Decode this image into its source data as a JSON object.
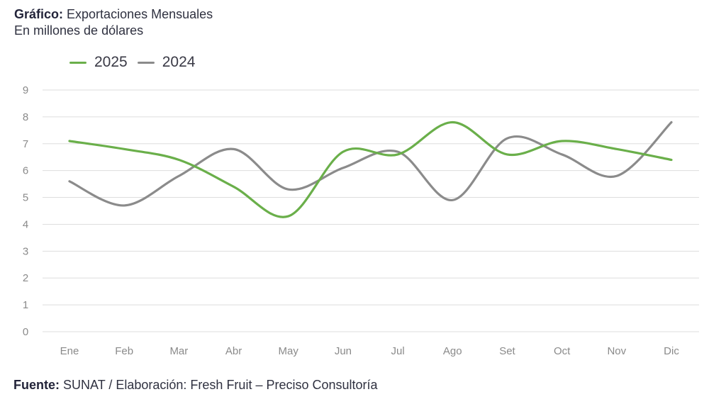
{
  "header": {
    "title_label": "Gráfico:",
    "title_text": "Exportaciones Mensuales",
    "subtitle": "En millones de dólares"
  },
  "footer": {
    "source_label": "Fuente:",
    "source_text": "SUNAT / Elaboración: Fresh Fruit – Preciso Consultoría"
  },
  "colors": {
    "series_2025": "#6aaf4a",
    "series_2024": "#8b8b8b",
    "grid": "#dddddd"
  },
  "chart_data": {
    "type": "line",
    "title": "Exportaciones Mensuales",
    "subtitle": "En millones de dólares",
    "xlabel": "",
    "ylabel": "",
    "categories": [
      "Ene",
      "Feb",
      "Mar",
      "Abr",
      "May",
      "Jun",
      "Jul",
      "Ago",
      "Set",
      "Oct",
      "Nov",
      "Dic"
    ],
    "ylim": [
      0,
      9
    ],
    "yticks": [
      0,
      1,
      2,
      3,
      4,
      5,
      6,
      7,
      8,
      9
    ],
    "grid": true,
    "legend_position": "top-left",
    "series": [
      {
        "name": "2025",
        "values": [
          7.1,
          6.8,
          6.4,
          5.4,
          4.3,
          6.7,
          6.6,
          7.8,
          6.6,
          7.1,
          6.8,
          6.4
        ]
      },
      {
        "name": "2024",
        "values": [
          5.6,
          4.7,
          5.8,
          6.8,
          5.3,
          6.1,
          6.7,
          4.9,
          7.2,
          6.6,
          5.8,
          7.8
        ]
      }
    ]
  }
}
